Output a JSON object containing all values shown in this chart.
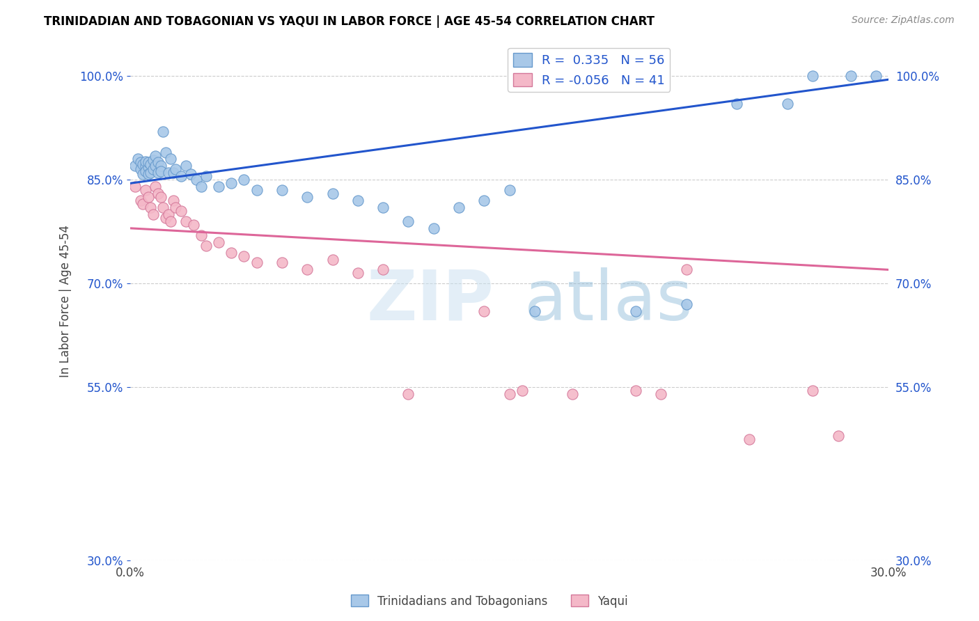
{
  "title": "TRINIDADIAN AND TOBAGONIAN VS YAQUI IN LABOR FORCE | AGE 45-54 CORRELATION CHART",
  "source": "Source: ZipAtlas.com",
  "ylabel": "In Labor Force | Age 45-54",
  "xlim": [
    0.0,
    0.3
  ],
  "ylim": [
    0.3,
    1.05
  ],
  "ytick_labels": [
    "30.0%",
    "55.0%",
    "70.0%",
    "85.0%",
    "100.0%"
  ],
  "ytick_vals": [
    0.3,
    0.55,
    0.7,
    0.85,
    1.0
  ],
  "xtick_labels": [
    "0.0%",
    "30.0%"
  ],
  "xtick_vals": [
    0.0,
    0.3
  ],
  "legend_r_blue": "R =  0.335",
  "legend_n_blue": "N = 56",
  "legend_r_pink": "R = -0.056",
  "legend_n_pink": "N = 41",
  "blue_color": "#a8c8e8",
  "blue_edge_color": "#6699cc",
  "pink_color": "#f4b8c8",
  "pink_edge_color": "#d4789a",
  "trendline_blue": "#2255cc",
  "trendline_pink": "#dd6699",
  "watermark_zip": "ZIP",
  "watermark_atlas": "atlas",
  "blue_scatter_x": [
    0.002,
    0.003,
    0.004,
    0.004,
    0.005,
    0.005,
    0.006,
    0.006,
    0.006,
    0.007,
    0.007,
    0.007,
    0.008,
    0.008,
    0.009,
    0.009,
    0.01,
    0.01,
    0.011,
    0.011,
    0.012,
    0.012,
    0.013,
    0.014,
    0.015,
    0.016,
    0.017,
    0.018,
    0.02,
    0.022,
    0.024,
    0.026,
    0.028,
    0.03,
    0.035,
    0.04,
    0.045,
    0.05,
    0.06,
    0.07,
    0.08,
    0.09,
    0.1,
    0.11,
    0.12,
    0.13,
    0.14,
    0.15,
    0.16,
    0.2,
    0.22,
    0.24,
    0.26,
    0.27,
    0.285,
    0.295
  ],
  "blue_scatter_y": [
    0.87,
    0.88,
    0.875,
    0.865,
    0.872,
    0.858,
    0.87,
    0.862,
    0.876,
    0.868,
    0.858,
    0.875,
    0.86,
    0.872,
    0.865,
    0.878,
    0.87,
    0.885,
    0.86,
    0.875,
    0.87,
    0.862,
    0.92,
    0.89,
    0.86,
    0.88,
    0.86,
    0.865,
    0.855,
    0.87,
    0.858,
    0.85,
    0.84,
    0.855,
    0.84,
    0.845,
    0.85,
    0.835,
    0.835,
    0.825,
    0.83,
    0.82,
    0.81,
    0.79,
    0.78,
    0.81,
    0.82,
    0.835,
    0.66,
    0.66,
    0.67,
    0.96,
    0.96,
    1.0,
    1.0,
    1.0
  ],
  "pink_scatter_x": [
    0.002,
    0.004,
    0.005,
    0.006,
    0.007,
    0.008,
    0.009,
    0.01,
    0.011,
    0.012,
    0.013,
    0.014,
    0.015,
    0.016,
    0.017,
    0.018,
    0.02,
    0.022,
    0.025,
    0.028,
    0.03,
    0.035,
    0.04,
    0.045,
    0.05,
    0.06,
    0.07,
    0.08,
    0.09,
    0.1,
    0.11,
    0.14,
    0.15,
    0.155,
    0.175,
    0.2,
    0.21,
    0.22,
    0.245,
    0.27,
    0.28
  ],
  "pink_scatter_y": [
    0.84,
    0.82,
    0.815,
    0.835,
    0.825,
    0.81,
    0.8,
    0.84,
    0.83,
    0.825,
    0.81,
    0.795,
    0.8,
    0.79,
    0.82,
    0.81,
    0.805,
    0.79,
    0.785,
    0.77,
    0.755,
    0.76,
    0.745,
    0.74,
    0.73,
    0.73,
    0.72,
    0.735,
    0.715,
    0.72,
    0.54,
    0.66,
    0.54,
    0.545,
    0.54,
    0.545,
    0.54,
    0.72,
    0.475,
    0.545,
    0.48
  ]
}
